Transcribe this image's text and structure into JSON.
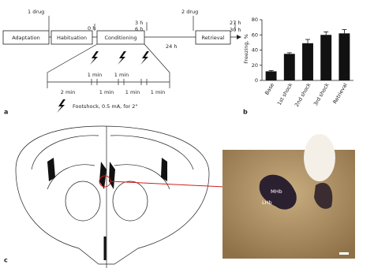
{
  "panel_a": {
    "label": "a",
    "drug_1": "1 drug",
    "drug_2": "2 drug",
    "stages": [
      "Adaptation",
      "Habituation",
      "Conditioning",
      "Retrieval"
    ],
    "times": [
      "0 h",
      "3 h",
      "6 h",
      "24 h",
      "27 h",
      "30 h"
    ],
    "intervals": [
      "2 min",
      "1 min",
      "1 min",
      "1 min",
      "1 min",
      "1 min"
    ],
    "legend": "Footshock, 0.5 mA, for 2\""
  },
  "chart_data": {
    "type": "bar",
    "label": "b",
    "y_label": "Freezing, %",
    "categories": [
      "Base",
      "1st shock",
      "2nd shock",
      "3rd shock",
      "Retrieval"
    ],
    "series": [
      {
        "name": "Freezing",
        "color": "#111111",
        "values": [
          12,
          35,
          49,
          60,
          62
        ],
        "errors": [
          1,
          1.5,
          5,
          4,
          5
        ]
      }
    ],
    "ylim": [
      0,
      80
    ],
    "yticks": [
      0,
      20,
      40,
      60,
      80
    ]
  },
  "panel_c": {
    "label": "c",
    "regions": [
      "MHb",
      "LHb"
    ]
  }
}
